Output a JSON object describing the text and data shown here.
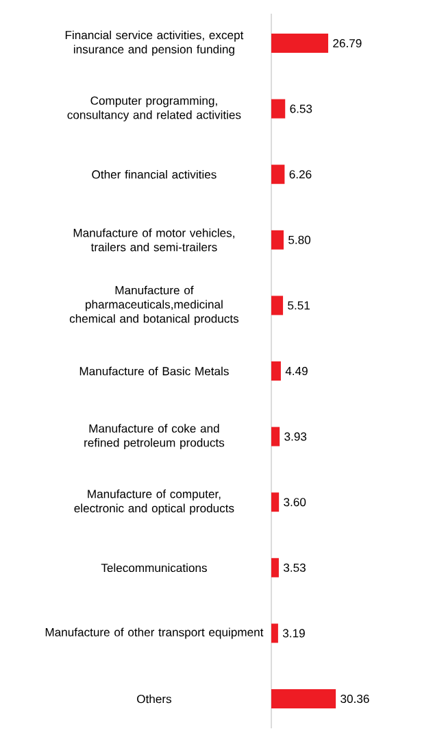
{
  "chart_data": {
    "type": "bar",
    "orientation": "horizontal",
    "color": "#ee1c24",
    "categories": [
      "Financial service activities, except insurance and pension funding",
      "Computer programming, consultancy and related activities",
      "Other financial activities",
      "Manufacture of motor vehicles, trailers and semi-trailers",
      "Manufacture of pharmaceuticals,medicinal chemical and botanical products",
      "Manufacture of Basic Metals",
      "Manufacture of coke and refined petroleum products",
      "Manufacture of computer, electronic and optical products",
      "Telecommunications",
      "Manufacture of other transport equipment",
      "Others"
    ],
    "values": [
      26.79,
      6.53,
      6.26,
      5.8,
      5.51,
      4.49,
      3.93,
      3.6,
      3.53,
      3.19,
      30.36
    ],
    "value_labels": [
      "26.79",
      "6.53",
      "6.26",
      "5.80",
      "5.51",
      "4.49",
      "3.93",
      "3.60",
      "3.53",
      "3.19",
      "30.36"
    ]
  }
}
